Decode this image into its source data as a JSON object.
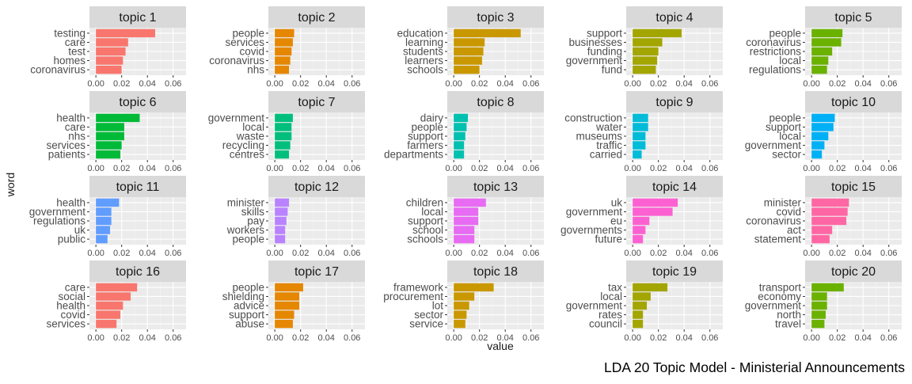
{
  "chart_data": {
    "type": "bar",
    "orientation": "horizontal",
    "caption": "LDA 20 Topic Model - Ministerial Announcements",
    "xlabel": "value",
    "ylabel": "word",
    "xlim": [
      0,
      0.07
    ],
    "x_ticks": [
      0.0,
      0.02,
      0.04,
      0.06
    ],
    "x_tick_labels": [
      "0.00",
      "0.02",
      "0.04",
      "0.06"
    ],
    "grid": true,
    "legend": "none",
    "facets": [
      {
        "title": "topic 1",
        "color": "#F8766D",
        "terms": [
          "testing",
          "care",
          "test",
          "homes",
          "coronavirus"
        ],
        "values": [
          0.046,
          0.025,
          0.023,
          0.021,
          0.02
        ]
      },
      {
        "title": "topic 2",
        "color": "#E58700",
        "terms": [
          "people",
          "services",
          "covid",
          "coronavirus",
          "nhs"
        ],
        "values": [
          0.015,
          0.014,
          0.013,
          0.012,
          0.011
        ]
      },
      {
        "title": "topic 3",
        "color": "#C99800",
        "terms": [
          "education",
          "learning",
          "students",
          "learners",
          "schools"
        ],
        "values": [
          0.052,
          0.024,
          0.023,
          0.022,
          0.02
        ]
      },
      {
        "title": "topic 4",
        "color": "#A3A500",
        "terms": [
          "support",
          "businesses",
          "funding",
          "government",
          "fund"
        ],
        "values": [
          0.038,
          0.023,
          0.02,
          0.019,
          0.018
        ]
      },
      {
        "title": "topic 5",
        "color": "#6BB100",
        "terms": [
          "people",
          "coronavirus",
          "restrictions",
          "local",
          "regulations"
        ],
        "values": [
          0.024,
          0.023,
          0.016,
          0.013,
          0.012
        ]
      },
      {
        "title": "topic 6",
        "color": "#00BA38",
        "terms": [
          "health",
          "care",
          "nhs",
          "services",
          "patients"
        ],
        "values": [
          0.034,
          0.022,
          0.022,
          0.02,
          0.019
        ]
      },
      {
        "title": "topic 7",
        "color": "#00BF7D",
        "terms": [
          "government",
          "local",
          "waste",
          "recycling",
          "centres"
        ],
        "values": [
          0.014,
          0.013,
          0.013,
          0.012,
          0.011
        ]
      },
      {
        "title": "topic 8",
        "color": "#00C0AF",
        "terms": [
          "dairy",
          "people",
          "support",
          "farmers",
          "departments"
        ],
        "values": [
          0.011,
          0.01,
          0.009,
          0.008,
          0.008
        ]
      },
      {
        "title": "topic 9",
        "color": "#00BCD8",
        "terms": [
          "construction",
          "water",
          "museums",
          "traffic",
          "carried"
        ],
        "values": [
          0.012,
          0.012,
          0.01,
          0.01,
          0.007
        ]
      },
      {
        "title": "topic 10",
        "color": "#00B0F6",
        "terms": [
          "people",
          "support",
          "local",
          "government",
          "sector"
        ],
        "values": [
          0.018,
          0.017,
          0.013,
          0.01,
          0.008
        ]
      },
      {
        "title": "topic 11",
        "color": "#619CFF",
        "terms": [
          "health",
          "government",
          "regulations",
          "uk",
          "public"
        ],
        "values": [
          0.018,
          0.012,
          0.012,
          0.011,
          0.009
        ]
      },
      {
        "title": "topic 12",
        "color": "#B983FF",
        "terms": [
          "minister",
          "skills",
          "pay",
          "workers",
          "people"
        ],
        "values": [
          0.011,
          0.01,
          0.009,
          0.008,
          0.008
        ]
      },
      {
        "title": "topic 13",
        "color": "#E76BF3",
        "terms": [
          "children",
          "local",
          "support",
          "school",
          "schools"
        ],
        "values": [
          0.025,
          0.019,
          0.019,
          0.016,
          0.016
        ]
      },
      {
        "title": "topic 14",
        "color": "#FD61D1",
        "terms": [
          "uk",
          "government",
          "eu",
          "governments",
          "future"
        ],
        "values": [
          0.035,
          0.031,
          0.013,
          0.01,
          0.008
        ]
      },
      {
        "title": "topic 15",
        "color": "#FF67A4",
        "terms": [
          "minister",
          "covid",
          "coronavirus",
          "act",
          "statement"
        ],
        "values": [
          0.029,
          0.028,
          0.027,
          0.016,
          0.014
        ]
      },
      {
        "title": "topic 16",
        "color": "#F8766D",
        "terms": [
          "care",
          "social",
          "health",
          "covid",
          "services"
        ],
        "values": [
          0.032,
          0.027,
          0.021,
          0.019,
          0.016
        ]
      },
      {
        "title": "topic 17",
        "color": "#E58700",
        "terms": [
          "people",
          "shielding",
          "advice",
          "support",
          "abuse"
        ],
        "values": [
          0.022,
          0.019,
          0.019,
          0.015,
          0.014
        ]
      },
      {
        "title": "topic 18",
        "color": "#C99800",
        "terms": [
          "framework",
          "procurement",
          "lot",
          "sector",
          "service"
        ],
        "values": [
          0.031,
          0.016,
          0.012,
          0.01,
          0.009
        ]
      },
      {
        "title": "topic 19",
        "color": "#A3A500",
        "terms": [
          "tax",
          "local",
          "government",
          "rates",
          "council"
        ],
        "values": [
          0.027,
          0.014,
          0.011,
          0.008,
          0.008
        ]
      },
      {
        "title": "topic 20",
        "color": "#6BB100",
        "terms": [
          "transport",
          "economy",
          "government",
          "north",
          "travel"
        ],
        "values": [
          0.025,
          0.012,
          0.012,
          0.011,
          0.01
        ]
      }
    ]
  }
}
